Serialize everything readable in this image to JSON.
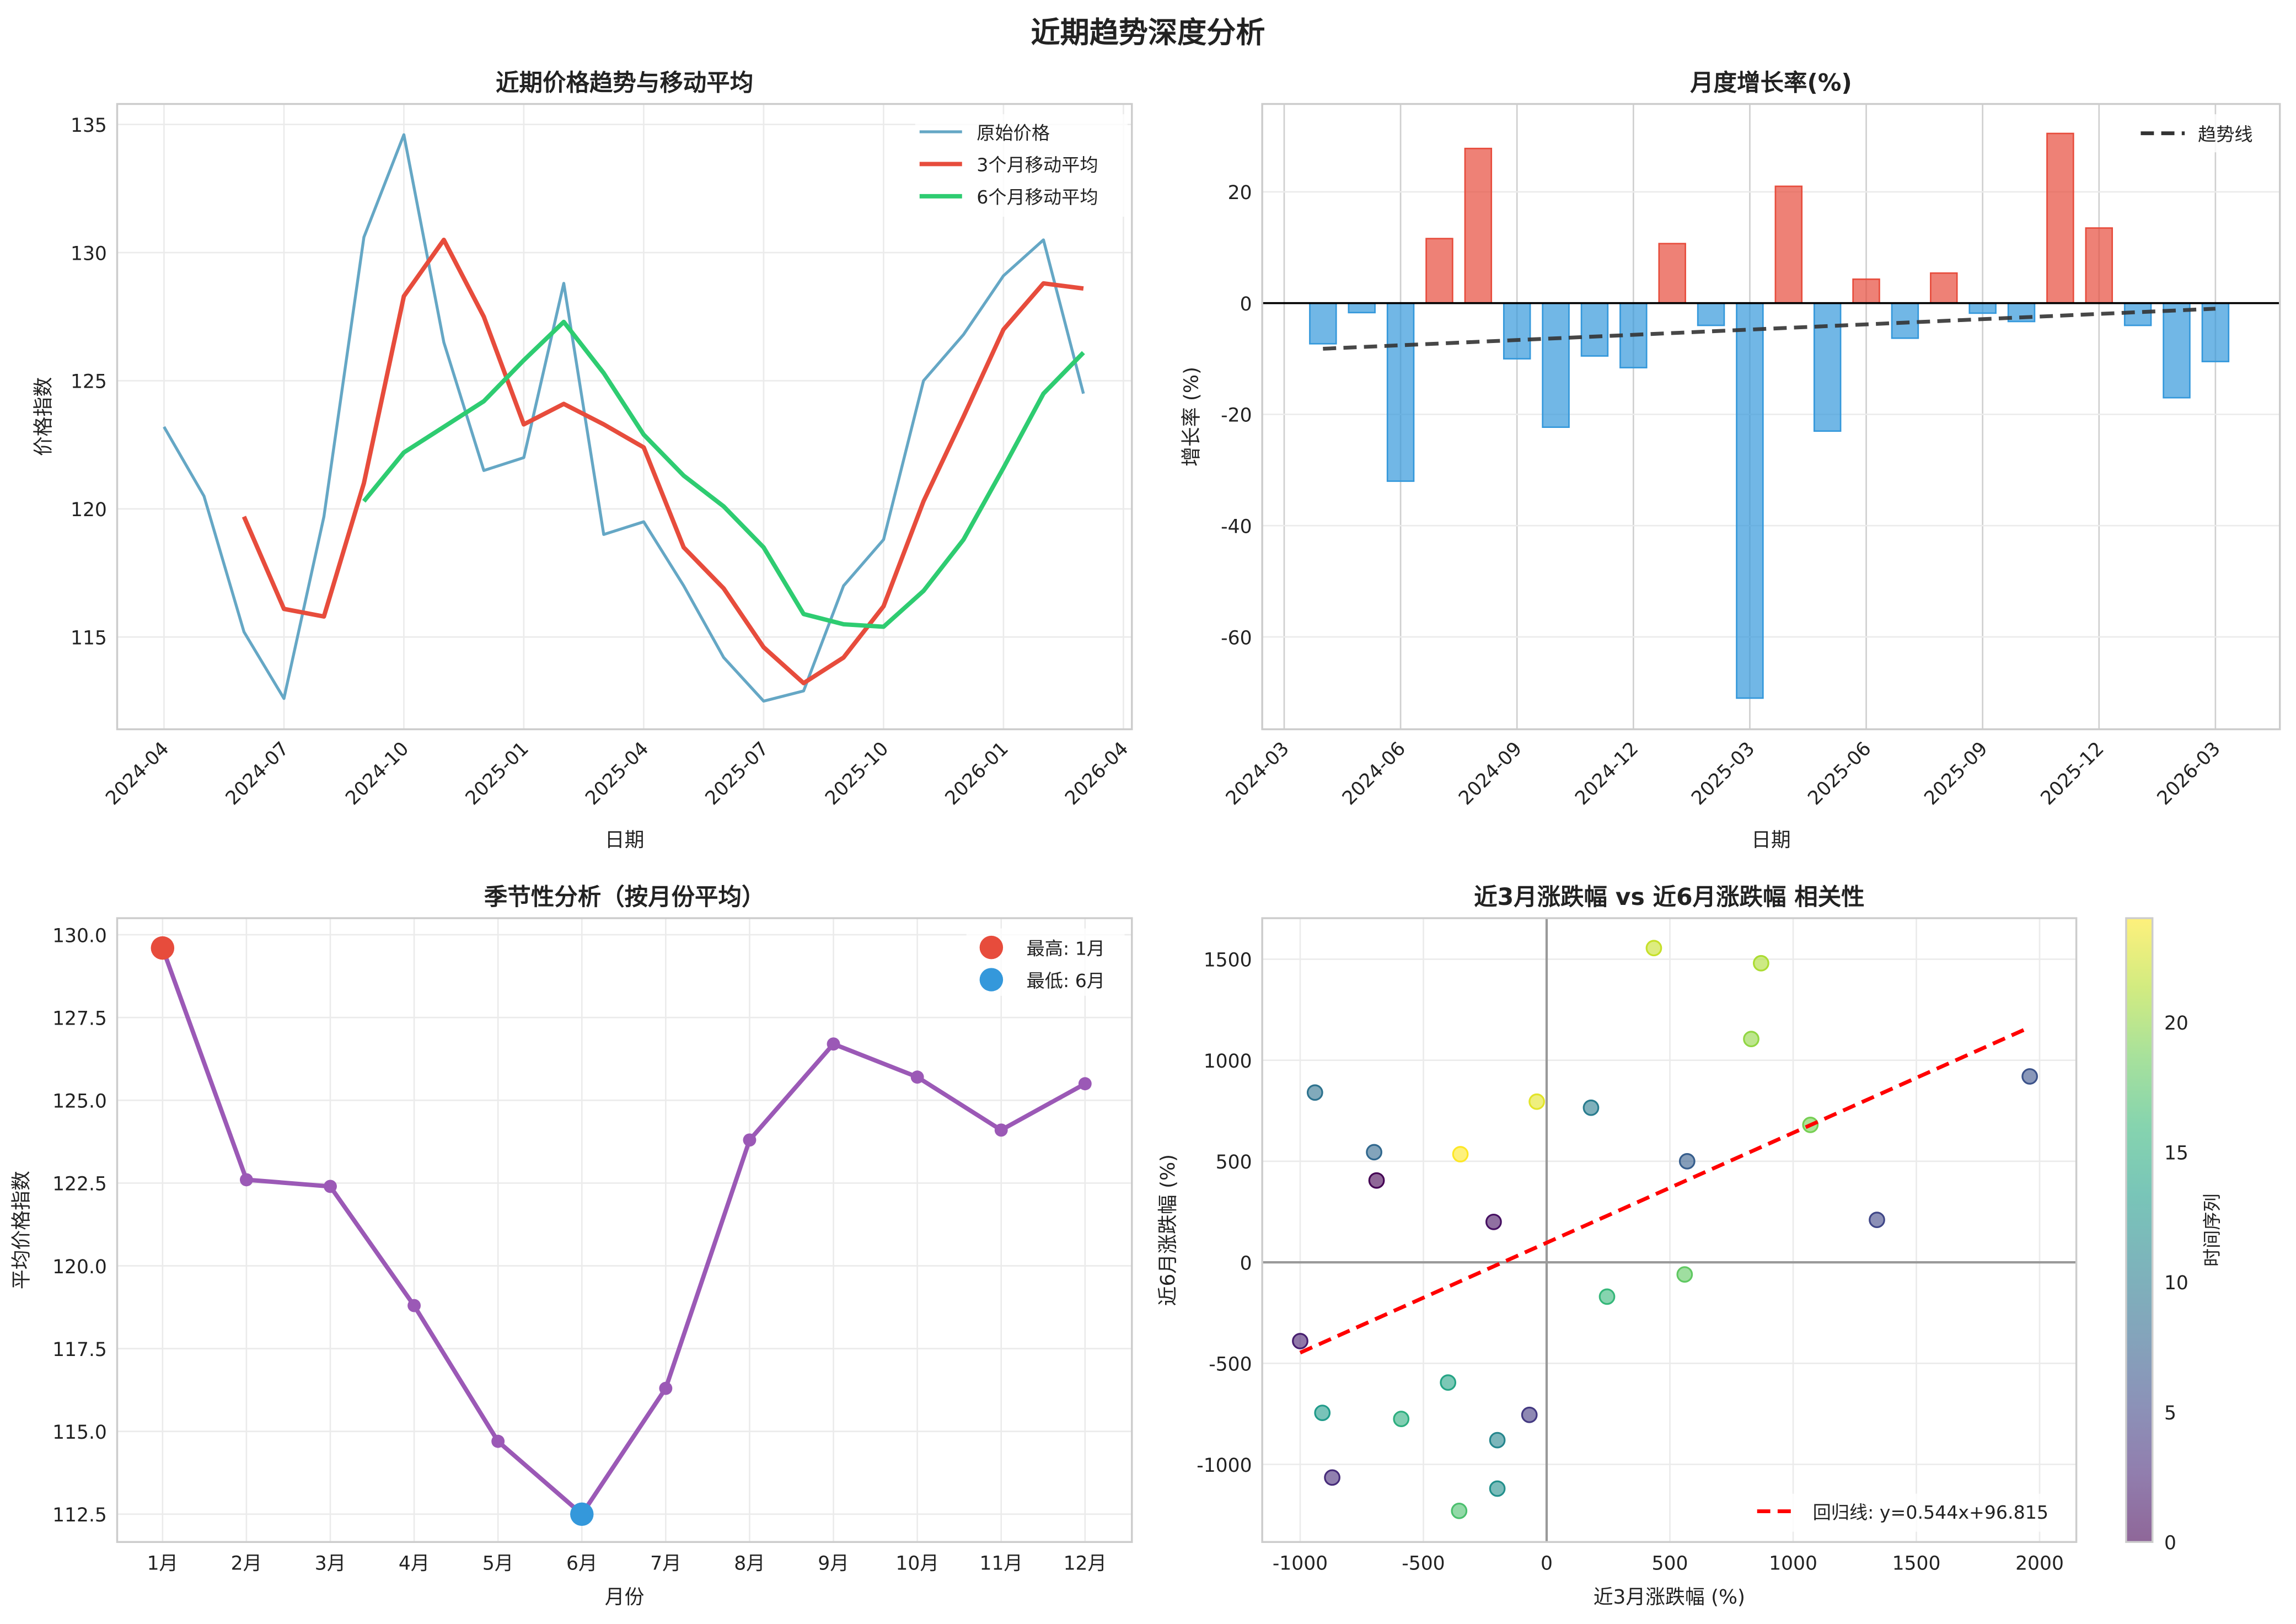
{
  "title": "近期趋势深度分析",
  "chart_data": [
    {
      "type": "line",
      "title": "近期价格趋势与移动平均",
      "xlabel": "日期",
      "ylabel": "价格指数",
      "dates": [
        "2024-04",
        "2024-05",
        "2024-06",
        "2024-07",
        "2024-08",
        "2024-09",
        "2024-10",
        "2024-11",
        "2024-12",
        "2025-01",
        "2025-02",
        "2025-03",
        "2025-04",
        "2025-05",
        "2025-06",
        "2025-07",
        "2025-08",
        "2025-09",
        "2025-10",
        "2025-11",
        "2025-12",
        "2026-01",
        "2026-02",
        "2026-03"
      ],
      "series": [
        {
          "name": "原始价格",
          "color": "#65a7c5",
          "values": [
            123.2,
            120.5,
            115.2,
            112.6,
            119.7,
            130.6,
            134.6,
            126.5,
            121.5,
            122.0,
            128.8,
            119.0,
            119.5,
            117.0,
            114.2,
            112.5,
            112.9,
            117.0,
            118.8,
            125.0,
            126.8,
            129.1,
            130.5,
            124.5
          ]
        },
        {
          "name": "3个月移动平均",
          "color": "#e74c3c",
          "values": [
            null,
            null,
            119.7,
            116.1,
            115.8,
            121.0,
            128.3,
            130.5,
            127.5,
            123.3,
            124.1,
            123.3,
            122.4,
            118.5,
            116.9,
            114.6,
            113.2,
            114.2,
            116.2,
            120.3,
            123.6,
            127.0,
            128.8,
            128.6
          ]
        },
        {
          "name": "6个月移动平均",
          "color": "#2ecc71",
          "values": [
            null,
            null,
            null,
            null,
            null,
            120.3,
            122.2,
            123.2,
            124.2,
            125.8,
            127.3,
            125.3,
            122.9,
            121.3,
            120.1,
            118.5,
            115.9,
            115.5,
            115.4,
            116.8,
            118.8,
            121.6,
            124.5,
            126.1
          ]
        }
      ],
      "x_ticks": [
        "2024-04",
        "2024-07",
        "2024-10",
        "2025-01",
        "2025-04",
        "2025-07",
        "2025-10",
        "2026-01",
        "2026-04"
      ],
      "y_ticks": [
        115,
        120,
        125,
        130,
        135
      ],
      "ylim": [
        111.4,
        135.8
      ],
      "xlim_months_from_first": [
        -1.17,
        24.2
      ],
      "legend": "top-right"
    },
    {
      "type": "bar",
      "title": "月度增长率(%)",
      "xlabel": "日期",
      "ylabel": "增长率 (%)",
      "dates": [
        "2024-04",
        "2024-05",
        "2024-06",
        "2024-07",
        "2024-08",
        "2024-09",
        "2024-10",
        "2024-11",
        "2024-12",
        "2025-01",
        "2025-02",
        "2025-03",
        "2025-04",
        "2025-05",
        "2025-06",
        "2025-07",
        "2025-08",
        "2025-09",
        "2025-10",
        "2025-11",
        "2025-12",
        "2026-01",
        "2026-02",
        "2026-03"
      ],
      "values": [
        -7.3,
        -1.7,
        -32.0,
        11.6,
        27.8,
        -10.0,
        -22.3,
        -9.5,
        -11.6,
        10.7,
        -4.0,
        -71.0,
        21.0,
        -23.0,
        4.3,
        -6.3,
        5.4,
        -1.8,
        -3.3,
        30.5,
        13.5,
        -4.0,
        -17.0,
        -10.5
      ],
      "positive_color": "#e74c3c",
      "negative_color": "#3498db",
      "trend": {
        "name": "趋势线",
        "start": -8.2,
        "end": -1.0,
        "color": "#333333"
      },
      "x_ticks": [
        "2024-03",
        "2024-06",
        "2024-09",
        "2024-12",
        "2025-03",
        "2025-06",
        "2025-09",
        "2025-12",
        "2026-03"
      ],
      "y_ticks": [
        -60,
        -40,
        -20,
        0,
        20
      ],
      "ylim": [
        -76.6,
        35.8
      ],
      "xlim_months_from_first_tick": [
        -0.57,
        25.66
      ],
      "legend": "top-right"
    },
    {
      "type": "line",
      "title": "季节性分析（按月份平均）",
      "xlabel": "月份",
      "ylabel": "平均价格指数",
      "categories": [
        "1月",
        "2月",
        "3月",
        "4月",
        "5月",
        "6月",
        "7月",
        "8月",
        "9月",
        "10月",
        "11月",
        "12月"
      ],
      "values": [
        129.6,
        122.6,
        122.4,
        118.8,
        114.7,
        112.5,
        116.3,
        123.8,
        126.7,
        125.7,
        124.1,
        125.5
      ],
      "color": "#9b59b6",
      "highlights": [
        {
          "label": "最高: 1月",
          "index": 0,
          "color": "#e74c3c"
        },
        {
          "label": "最低: 6月",
          "index": 5,
          "color": "#3498db"
        }
      ],
      "y_ticks": [
        "112.5",
        "115.0",
        "117.5",
        "120.0",
        "122.5",
        "125.0",
        "127.5",
        "130.0"
      ],
      "ylim": [
        111.66,
        130.5
      ],
      "legend": "top-right"
    },
    {
      "type": "scatter",
      "title": "近3月涨跌幅 vs 近6月涨跌幅 相关性",
      "xlabel": "近3月涨跌幅 (%)",
      "ylabel": "近6月涨跌幅 (%)",
      "points": [
        {
          "x": -690,
          "y": 405,
          "t": 0
        },
        {
          "x": -215,
          "y": 200,
          "t": 1
        },
        {
          "x": -1000,
          "y": -390,
          "t": 2
        },
        {
          "x": -870,
          "y": -1065,
          "t": 3
        },
        {
          "x": -70,
          "y": -755,
          "t": 4
        },
        {
          "x": 1340,
          "y": 210,
          "t": 5
        },
        {
          "x": 1960,
          "y": 920,
          "t": 6
        },
        {
          "x": 570,
          "y": 500,
          "t": 7
        },
        {
          "x": -700,
          "y": 545,
          "t": 8
        },
        {
          "x": -940,
          "y": 840,
          "t": 9
        },
        {
          "x": 180,
          "y": 765,
          "t": 10
        },
        {
          "x": -200,
          "y": -880,
          "t": 11
        },
        {
          "x": -200,
          "y": -1120,
          "t": 12
        },
        {
          "x": -910,
          "y": -745,
          "t": 13
        },
        {
          "x": -400,
          "y": -595,
          "t": 14
        },
        {
          "x": -590,
          "y": -775,
          "t": 15
        },
        {
          "x": 245,
          "y": -170,
          "t": 16
        },
        {
          "x": -355,
          "y": -1230,
          "t": 17
        },
        {
          "x": 560,
          "y": -60,
          "t": 18
        },
        {
          "x": 1070,
          "y": 680,
          "t": 19
        },
        {
          "x": 830,
          "y": 1105,
          "t": 20
        },
        {
          "x": 870,
          "y": 1480,
          "t": 21
        },
        {
          "x": 435,
          "y": 1555,
          "t": 22
        },
        {
          "x": -40,
          "y": 795,
          "t": 23
        },
        {
          "x": -350,
          "y": 535,
          "t": 24
        }
      ],
      "regression": {
        "label": "回归线: y=0.544x+96.815",
        "slope": 0.544,
        "intercept": 96.815,
        "x_range": [
          -1000,
          1960
        ],
        "color": "#ff0000"
      },
      "colorbar": {
        "label": "时间序列",
        "range": [
          0,
          24
        ],
        "ticks": [
          0,
          5,
          10,
          15,
          20
        ]
      },
      "x_ticks": [
        -1000,
        -500,
        0,
        500,
        1000,
        1500,
        2000
      ],
      "y_ticks": [
        -1000,
        -500,
        0,
        500,
        1000,
        1500
      ],
      "xlim": [
        -1154,
        2149
      ],
      "ylim": [
        -1384,
        1703
      ],
      "legend": "bottom-right"
    }
  ]
}
